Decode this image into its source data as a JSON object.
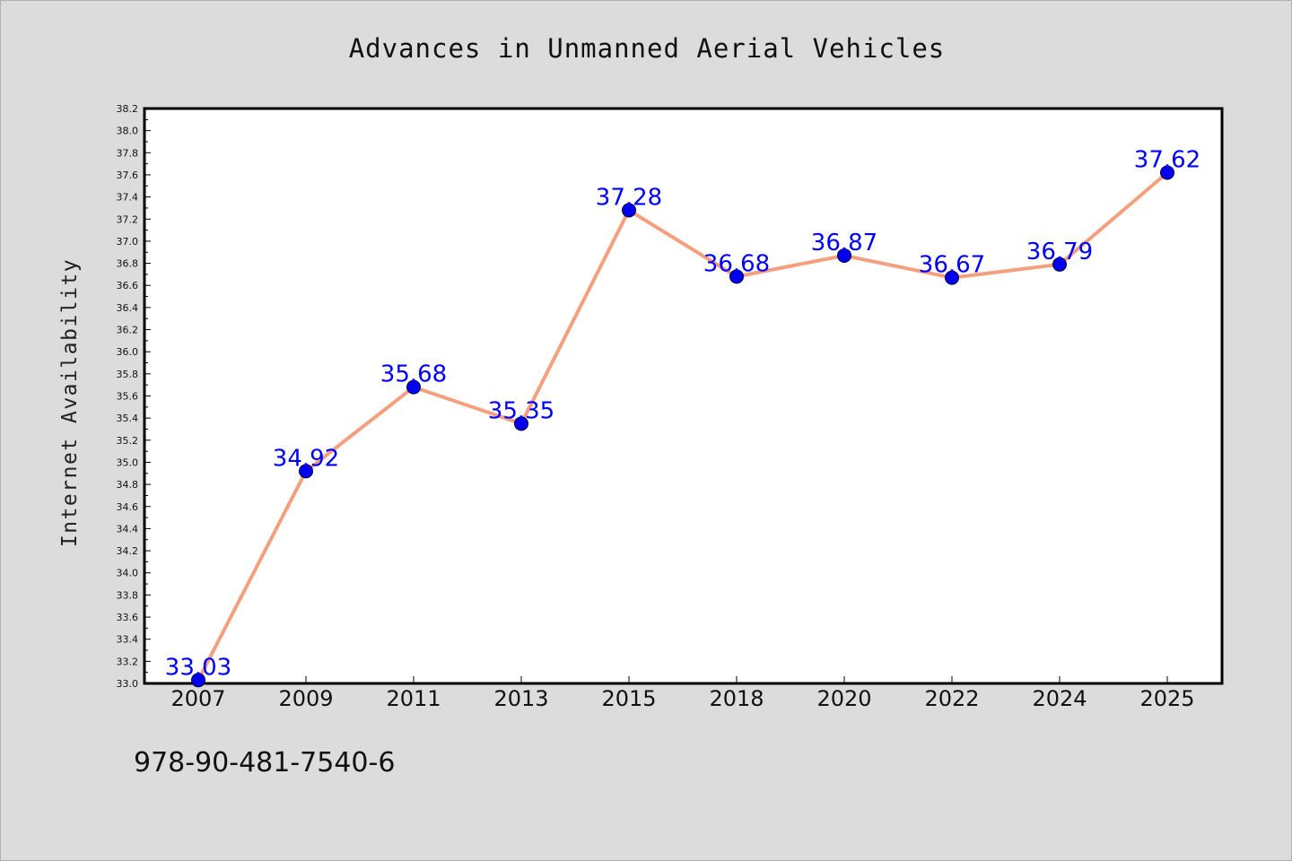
{
  "chart_data": {
    "type": "line",
    "title": "Advances in Unmanned Aerial Vehicles",
    "xlabel": "",
    "ylabel": "Internet Availability",
    "categories": [
      "2007",
      "2009",
      "2011",
      "2013",
      "2015",
      "2018",
      "2020",
      "2022",
      "2024",
      "2025"
    ],
    "series": [
      {
        "values": [
          33.03,
          34.92,
          35.68,
          35.35,
          37.28,
          36.68,
          36.87,
          36.67,
          36.79,
          37.62
        ],
        "data_labels": [
          "33.03",
          "34.92",
          "35.68",
          "35.35",
          "37.28",
          "36.68",
          "36.87",
          "36.67",
          "36.79",
          "37.62"
        ],
        "line_color": "#f4a07e",
        "marker_color": "#0000ee",
        "label_color": "#0000ff"
      }
    ],
    "ylim": [
      33.0,
      38.2
    ],
    "y_tick_step": 0.2,
    "grid": false,
    "legend": "none"
  },
  "footer": {
    "isbn": "978-90-481-7540-6"
  }
}
